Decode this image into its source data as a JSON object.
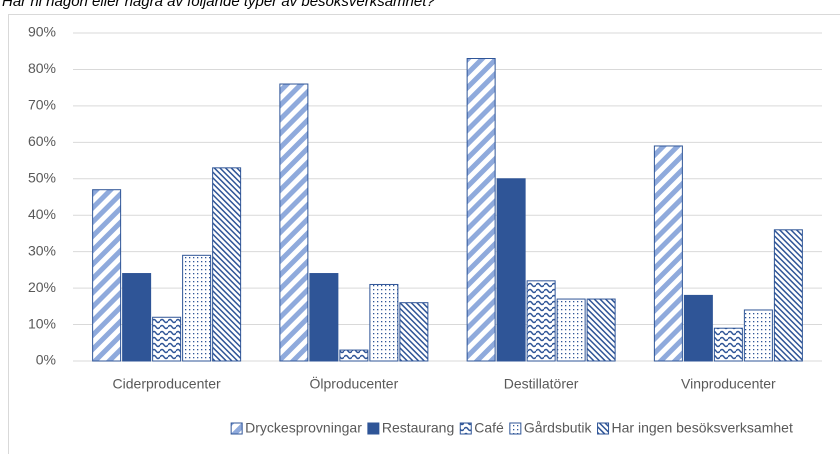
{
  "chart_data": {
    "type": "bar",
    "title": "Har ni någon eller några av följande typer av besöksverksamhet?",
    "categories": [
      "Ciderproducenter",
      "Ölproducenter",
      "Destillatörer",
      "Vinproducenter"
    ],
    "series": [
      {
        "name": "Dryckesprovningar",
        "color": "#8faadc",
        "pattern": "wide-diagonal",
        "values": [
          47,
          76,
          83,
          59
        ]
      },
      {
        "name": "Restaurang",
        "color": "#2f5597",
        "pattern": "solid",
        "values": [
          24,
          24,
          50,
          18
        ]
      },
      {
        "name": "Café",
        "color": "#2f5597",
        "pattern": "wave",
        "values": [
          12,
          3,
          22,
          9
        ]
      },
      {
        "name": "Gårdsbutik",
        "color": "#2f5597",
        "pattern": "dots",
        "values": [
          29,
          21,
          17,
          14
        ]
      },
      {
        "name": "Har ingen besöksverksamhet",
        "color": "#2f5597",
        "pattern": "dense-diagonal",
        "values": [
          53,
          16,
          17,
          36
        ]
      }
    ],
    "ylim": [
      0,
      90
    ],
    "yticks": [
      {
        "value": 0,
        "label": "0%"
      },
      {
        "value": 10,
        "label": "10%"
      },
      {
        "value": 20,
        "label": "20%"
      },
      {
        "value": 30,
        "label": "30%"
      },
      {
        "value": 40,
        "label": "40%"
      },
      {
        "value": 50,
        "label": "50%"
      },
      {
        "value": 60,
        "label": "60%"
      },
      {
        "value": 70,
        "label": "70%"
      },
      {
        "value": 80,
        "label": "80%"
      },
      {
        "value": 90,
        "label": "90%"
      }
    ],
    "grid": true,
    "legend": "bottom"
  }
}
